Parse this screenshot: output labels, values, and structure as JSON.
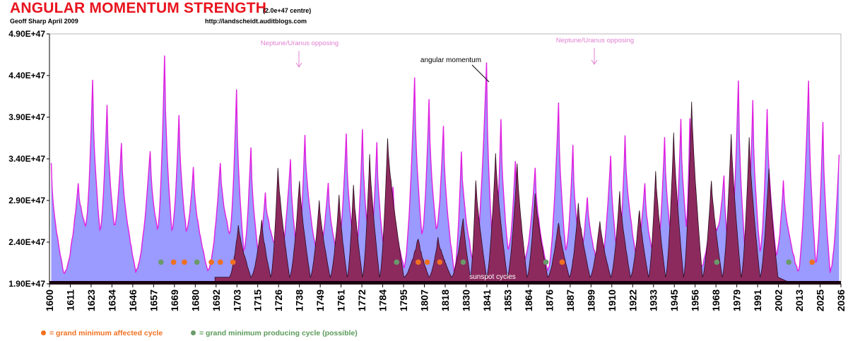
{
  "header": {
    "title": "ANGULAR MOMENTUM STRENGTH",
    "subtitle": "(2.0e+47 centre)",
    "author": "Geoff Sharp  April 2009",
    "url": "http://landscheidt.auditblogs.com"
  },
  "legend": {
    "affected": "= grand minimum affected cycle",
    "producing": "= grand minimum producing cycle (possible)"
  },
  "colors": {
    "am_fill": "#9a9aff",
    "am_line": "#e020e0",
    "sunspot_fill": "#8c2a5e",
    "baseline": "#1a0010",
    "affected_dot": "#f07020",
    "producing_dot": "#6a9a6a",
    "annotation_pink": "#e080d0"
  },
  "chart_data": {
    "type": "area",
    "title": "ANGULAR MOMENTUM STRENGTH",
    "subtitle": "(2.0e+47 centre)",
    "xlim": [
      1600,
      2040
    ],
    "ylim": [
      1.9e+47,
      4.9e+47
    ],
    "y_ticks": [
      "1.90E+47",
      "2.40E+47",
      "2.90E+47",
      "3.40E+47",
      "3.90E+47",
      "4.40E+47",
      "4.90E+47"
    ],
    "y_tick_values": [
      1.9e+47,
      2.4e+47,
      2.9e+47,
      3.4e+47,
      3.9e+47,
      4.4e+47,
      4.9e+47
    ],
    "x_ticks": [
      "1600",
      "1611",
      "1623",
      "1634",
      "1646",
      "1657",
      "1669",
      "1680",
      "1692",
      "1703",
      "1715",
      "1726",
      "1738",
      "1749",
      "1761",
      "1772",
      "1784",
      "1795",
      "1807",
      "1818",
      "1830",
      "1841",
      "1853",
      "1864",
      "1876",
      "1887",
      "1899",
      "1910",
      "1922",
      "1933",
      "1945",
      "1956",
      "1968",
      "1979",
      "1991",
      "2002",
      "2013",
      "2025",
      "2036"
    ],
    "grid": false,
    "series": [
      {
        "name": "angular momentum",
        "peaks": [
          [
            1601,
            3.35e+47
          ],
          [
            1616,
            3.1e+47
          ],
          [
            1624,
            4.35e+47
          ],
          [
            1632,
            4.05e+47
          ],
          [
            1640,
            3.58e+47
          ],
          [
            1656,
            3.5e+47
          ],
          [
            1664,
            4.65e+47
          ],
          [
            1672,
            3.93e+47
          ],
          [
            1680,
            3.3e+47
          ],
          [
            1695,
            3.35e+47
          ],
          [
            1704,
            4.25e+47
          ],
          [
            1712,
            3.55e+47
          ],
          [
            1720,
            3e+47
          ],
          [
            1734,
            3.4e+47
          ],
          [
            1742,
            3.7e+47
          ],
          [
            1755,
            3.1e+47
          ],
          [
            1765,
            3.7e+47
          ],
          [
            1774,
            3.75e+47
          ],
          [
            1782,
            3.6e+47
          ],
          [
            1791,
            3.05e+47
          ],
          [
            1803,
            4.38e+47
          ],
          [
            1811,
            4.1e+47
          ],
          [
            1819,
            3.8e+47
          ],
          [
            1829,
            3.5e+47
          ],
          [
            1843,
            4.55e+47
          ],
          [
            1851,
            3.88e+47
          ],
          [
            1859,
            3.37e+47
          ],
          [
            1870,
            3.3e+47
          ],
          [
            1883,
            4.07e+47
          ],
          [
            1891,
            3.55e+47
          ],
          [
            1899,
            2.95e+47
          ],
          [
            1912,
            3.45e+47
          ],
          [
            1920,
            3.67e+47
          ],
          [
            1931,
            3.1e+47
          ],
          [
            1942,
            3.65e+47
          ],
          [
            1951,
            3.88e+47
          ],
          [
            1956,
            3.9e+47
          ],
          [
            1968,
            2.78e+47
          ],
          [
            1975,
            3.2e+47
          ],
          [
            1983,
            4.35e+47
          ],
          [
            1991,
            4.1e+47
          ],
          [
            1999,
            4e+47
          ],
          [
            2008,
            3.15e+47
          ],
          [
            2022,
            4.35e+47
          ],
          [
            2030,
            3.85e+47
          ],
          [
            2039,
            3.45e+47
          ]
        ],
        "troughs": [
          [
            1608,
            2.03e+47
          ],
          [
            1620,
            2.6e+47
          ],
          [
            1628,
            2.55e+47
          ],
          [
            1636,
            2.6e+47
          ],
          [
            1648,
            2.05e+47
          ],
          [
            1660,
            2.55e+47
          ],
          [
            1668,
            2.55e+47
          ],
          [
            1676,
            2.55e+47
          ],
          [
            1688,
            2.05e+47
          ],
          [
            1700,
            2.5e+47
          ],
          [
            1708,
            2.3e+47
          ],
          [
            1716,
            2.3e+47
          ],
          [
            1728,
            2.2e+47
          ],
          [
            1738,
            2.2e+47
          ],
          [
            1749,
            2.2e+47
          ],
          [
            1760,
            2.25e+47
          ],
          [
            1770,
            2.2e+47
          ],
          [
            1778,
            2.3e+47
          ],
          [
            1786,
            2.3e+47
          ],
          [
            1797,
            2.1e+47
          ],
          [
            1807,
            2.5e+47
          ],
          [
            1815,
            2.55e+47
          ],
          [
            1825,
            2.05e+47
          ],
          [
            1836,
            2.1e+47
          ],
          [
            1847,
            2.1e+47
          ],
          [
            1855,
            2.3e+47
          ],
          [
            1864,
            2.2e+47
          ],
          [
            1877,
            2.05e+47
          ],
          [
            1887,
            2.3e+47
          ],
          [
            1895,
            2.25e+47
          ],
          [
            1906,
            2.05e+47
          ],
          [
            1916,
            2.2e+47
          ],
          [
            1926,
            2.25e+47
          ],
          [
            1937,
            2.1e+47
          ],
          [
            1947,
            2.2e+47
          ],
          [
            1954,
            2.6e+47
          ],
          [
            1962,
            2.1e+47
          ],
          [
            1971,
            2.55e+47
          ],
          [
            1978,
            2.2e+47
          ],
          [
            1987,
            2.2e+47
          ],
          [
            1995,
            2.3e+47
          ],
          [
            2004,
            2.25e+47
          ],
          [
            2016,
            2.05e+47
          ],
          [
            2026,
            2.15e+47
          ],
          [
            2034,
            2.05e+47
          ]
        ]
      },
      {
        "name": "sunspot cycles",
        "peaks": [
          [
            1705,
            2.6e+47
          ],
          [
            1718,
            2.65e+47
          ],
          [
            1727,
            3.3e+47
          ],
          [
            1739,
            3.15e+47
          ],
          [
            1750,
            2.9e+47
          ],
          [
            1761,
            2.95e+47
          ],
          [
            1769,
            3.1e+47
          ],
          [
            1778,
            3.45e+47
          ],
          [
            1788,
            3.65e+47
          ],
          [
            1805,
            2.45e+47
          ],
          [
            1816,
            2.45e+47
          ],
          [
            1830,
            2.7e+47
          ],
          [
            1837,
            3.15e+47
          ],
          [
            1848,
            3.45e+47
          ],
          [
            1860,
            3.35e+47
          ],
          [
            1870,
            3e+47
          ],
          [
            1883,
            2.65e+47
          ],
          [
            1894,
            2.85e+47
          ],
          [
            1906,
            2.65e+47
          ],
          [
            1917,
            3e+47
          ],
          [
            1928,
            2.8e+47
          ],
          [
            1937,
            3.25e+47
          ],
          [
            1947,
            3.7e+47
          ],
          [
            1957,
            4.08e+47
          ],
          [
            1968,
            3.15e+47
          ],
          [
            1979,
            3.7e+47
          ],
          [
            1989,
            3.65e+47
          ],
          [
            2000,
            3.3e+47
          ]
        ]
      }
    ],
    "grand_minimum_affected_cycles": [
      1669,
      1675,
      1690,
      1695,
      1702,
      1805,
      1810,
      1817,
      1885,
      2024
    ],
    "grand_minimum_producing_cycles": [
      1662,
      1682,
      1793,
      1830,
      1876,
      1971,
      2011
    ],
    "annotations": [
      {
        "text": "Neptune/Uranus opposing",
        "x": 1738
      },
      {
        "text": "Neptune/Uranus opposing",
        "x": 1900
      },
      {
        "text": "angular momentum",
        "x": 1843
      },
      {
        "text": "sunspot cycles",
        "x": 1860
      }
    ]
  }
}
